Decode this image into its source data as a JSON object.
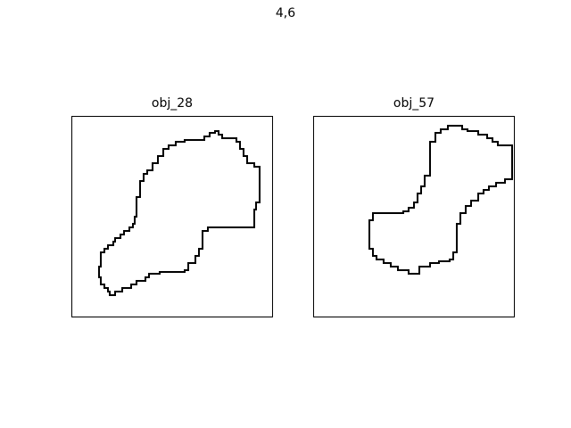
{
  "figure": {
    "title": "4,6"
  },
  "panels": [
    {
      "title": "obj_28"
    },
    {
      "title": "obj_57"
    }
  ],
  "colors": {
    "background": "#ffffff",
    "outline": "#000000",
    "frame": "#000000"
  }
}
